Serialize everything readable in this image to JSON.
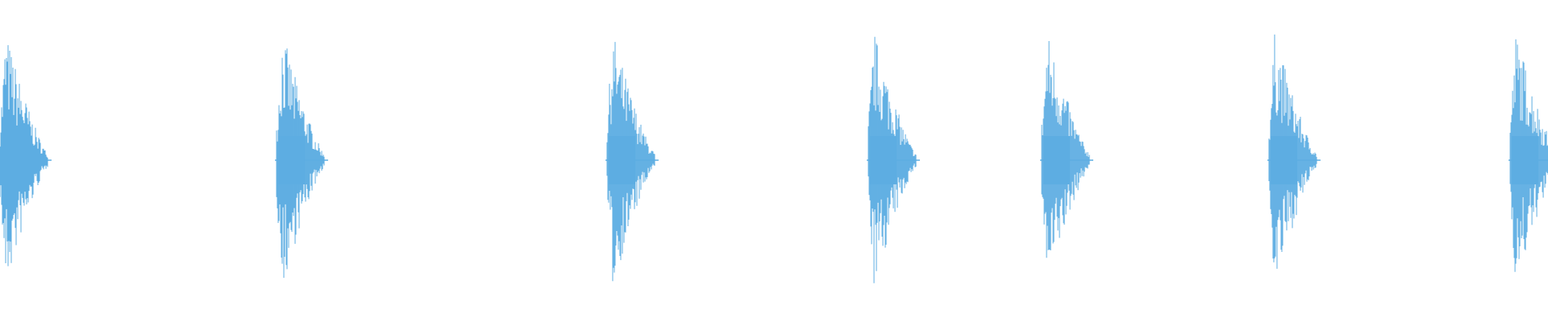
{
  "chart_data": {
    "type": "line",
    "description_kind": "audio-waveform",
    "title": "",
    "xlabel": "",
    "ylabel": "",
    "ylim": [
      -1,
      1
    ],
    "xlim": [
      0,
      1
    ],
    "grid": false,
    "legend": "none",
    "color": "#5dade2",
    "series": [
      {
        "bursts": [
          {
            "onset": 0.0,
            "peak": 1.0,
            "decay": 0.026
          },
          {
            "onset": 0.1797,
            "peak": 1.0,
            "decay": 0.026
          },
          {
            "onset": 0.3932,
            "peak": 1.0,
            "decay": 0.026
          },
          {
            "onset": 0.562,
            "peak": 1.0,
            "decay": 0.026
          },
          {
            "onset": 0.674,
            "peak": 1.0,
            "decay": 0.026
          },
          {
            "onset": 0.8208,
            "peak": 1.0,
            "decay": 0.026
          },
          {
            "onset": 0.9766,
            "peak": 1.0,
            "decay": 0.026
          }
        ]
      }
    ]
  }
}
